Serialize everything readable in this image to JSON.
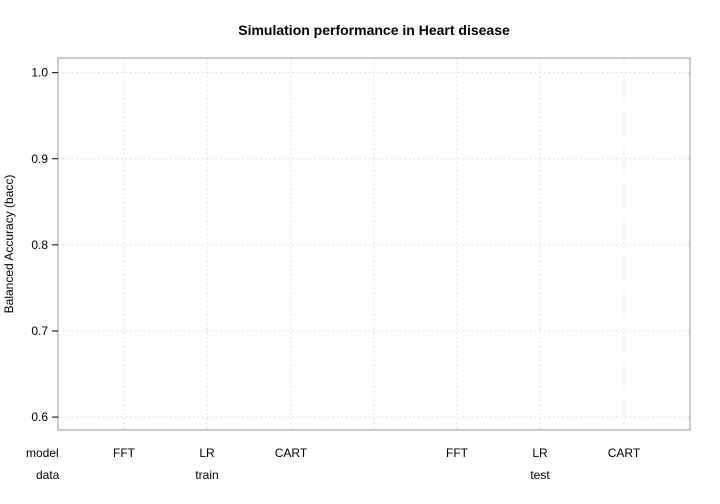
{
  "chart_data": {
    "type": "scatter",
    "title": "Simulation performance in Heart disease",
    "ylabel": "Balanced Accuracy (bacc)",
    "ylim": [
      0.585,
      1.017
    ],
    "yticks": [
      "0.6",
      "0.7",
      "0.8",
      "0.9",
      "1.0"
    ],
    "grid": true,
    "row_labels": {
      "model": "model",
      "data": "data"
    },
    "groups": [
      {
        "name": "train",
        "models": [
          "FFT",
          "LR",
          "CART"
        ]
      },
      {
        "name": "test",
        "models": [
          "FFT",
          "LR",
          "CART"
        ]
      }
    ],
    "series": []
  }
}
